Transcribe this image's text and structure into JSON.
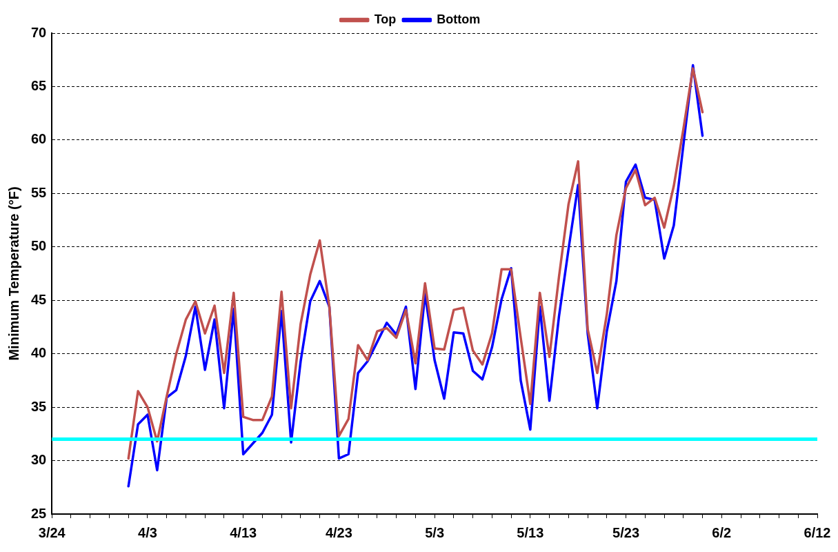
{
  "chart_data": {
    "type": "line",
    "ylabel": "Minimum Temperature (°F)",
    "x": [
      "--04-01",
      "--04-02",
      "--04-03",
      "--04-04",
      "--04-05",
      "--04-06",
      "--04-07",
      "--04-08",
      "--04-09",
      "--04-10",
      "--04-11",
      "--04-12",
      "--04-13",
      "--04-14",
      "--04-15",
      "--04-16",
      "--04-17",
      "--04-18",
      "--04-19",
      "--04-20",
      "--04-21",
      "--04-22",
      "--04-23",
      "--04-24",
      "--04-25",
      "--04-26",
      "--04-27",
      "--04-28",
      "--04-29",
      "--04-30",
      "--05-01",
      "--05-02",
      "--05-03",
      "--05-04",
      "--05-05",
      "--05-06",
      "--05-07",
      "--05-08",
      "--05-09",
      "--05-10",
      "--05-11",
      "--05-12",
      "--05-13",
      "--05-14",
      "--05-15",
      "--05-16",
      "--05-17",
      "--05-18",
      "--05-19",
      "--05-20",
      "--05-21",
      "--05-22",
      "--05-23",
      "--05-24",
      "--05-25",
      "--05-26",
      "--05-27",
      "--05-28",
      "--05-29",
      "--05-30",
      "--05-31"
    ],
    "series": [
      {
        "name": "Bottom",
        "color": "#0000ff",
        "values": [
          27.6,
          33.4,
          34.3,
          29.1,
          35.9,
          36.6,
          39.8,
          44.4,
          38.5,
          43.2,
          34.9,
          44.2,
          30.6,
          31.6,
          32.6,
          34.3,
          44.0,
          31.7,
          39.3,
          44.9,
          46.8,
          44.4,
          30.2,
          30.6,
          38.2,
          39.3,
          41.1,
          42.9,
          41.8,
          44.4,
          36.7,
          45.6,
          39.4,
          35.8,
          42.0,
          41.9,
          38.4,
          37.6,
          40.6,
          45.1,
          48.0,
          37.5,
          32.9,
          44.4,
          35.6,
          43.5,
          49.8,
          55.8,
          41.9,
          34.9,
          42.1,
          46.8,
          56.1,
          57.7,
          54.6,
          54.4,
          48.9,
          52.0,
          59.5,
          67.0,
          60.4
        ]
      },
      {
        "name": "Top",
        "color": "#c0504d",
        "values": [
          30.2,
          36.5,
          35.0,
          31.8,
          36.0,
          40.0,
          43.2,
          44.9,
          41.9,
          44.5,
          38.2,
          45.7,
          34.1,
          33.8,
          33.8,
          36.0,
          45.8,
          34.9,
          42.8,
          47.4,
          50.6,
          44.4,
          32.3,
          33.9,
          40.8,
          39.4,
          42.1,
          42.4,
          41.5,
          44.1,
          39.1,
          46.6,
          40.5,
          40.4,
          44.1,
          44.3,
          40.3,
          39.0,
          41.9,
          47.9,
          47.9,
          41.5,
          35.3,
          45.7,
          39.7,
          47.2,
          54.0,
          58.0,
          42.3,
          38.2,
          43.7,
          51.1,
          55.5,
          57.2,
          53.9,
          54.6,
          51.8,
          55.7,
          61.0,
          66.7,
          62.6
        ]
      }
    ],
    "xlim": [
      "--03-24",
      "--06-12"
    ],
    "xticks": [
      {
        "value": "--03-24",
        "label": "3/24"
      },
      {
        "value": "--03-26",
        "label": null
      },
      {
        "value": "--03-28",
        "label": null
      },
      {
        "value": "--03-30",
        "label": null
      },
      {
        "value": "--04-01",
        "label": null
      },
      {
        "value": "--04-03",
        "label": "4/3"
      },
      {
        "value": "--04-05",
        "label": null
      },
      {
        "value": "--04-07",
        "label": null
      },
      {
        "value": "--04-09",
        "label": null
      },
      {
        "value": "--04-11",
        "label": null
      },
      {
        "value": "--04-13",
        "label": "4/13"
      },
      {
        "value": "--04-15",
        "label": null
      },
      {
        "value": "--04-17",
        "label": null
      },
      {
        "value": "--04-19",
        "label": null
      },
      {
        "value": "--04-21",
        "label": null
      },
      {
        "value": "--04-23",
        "label": "4/23"
      },
      {
        "value": "--04-25",
        "label": null
      },
      {
        "value": "--04-27",
        "label": null
      },
      {
        "value": "--04-29",
        "label": null
      },
      {
        "value": "--05-01",
        "label": null
      },
      {
        "value": "--05-03",
        "label": "5/3"
      },
      {
        "value": "--05-05",
        "label": null
      },
      {
        "value": "--05-07",
        "label": null
      },
      {
        "value": "--05-09",
        "label": null
      },
      {
        "value": "--05-11",
        "label": null
      },
      {
        "value": "--05-13",
        "label": "5/13"
      },
      {
        "value": "--05-15",
        "label": null
      },
      {
        "value": "--05-17",
        "label": null
      },
      {
        "value": "--05-19",
        "label": null
      },
      {
        "value": "--05-21",
        "label": null
      },
      {
        "value": "--05-23",
        "label": "5/23"
      },
      {
        "value": "--05-25",
        "label": null
      },
      {
        "value": "--05-27",
        "label": null
      },
      {
        "value": "--05-29",
        "label": null
      },
      {
        "value": "--05-31",
        "label": null
      },
      {
        "value": "--06-02",
        "label": "6/2"
      },
      {
        "value": "--06-04",
        "label": null
      },
      {
        "value": "--06-06",
        "label": null
      },
      {
        "value": "--06-08",
        "label": null
      },
      {
        "value": "--06-10",
        "label": null
      },
      {
        "value": "--06-12",
        "label": "6/12"
      }
    ],
    "ylim": [
      25,
      70
    ],
    "yticks": [
      25,
      30,
      35,
      40,
      45,
      50,
      55,
      60,
      65,
      70
    ],
    "ref_lines": [
      {
        "axis": "y",
        "value": 32,
        "color": "#00ffff"
      }
    ],
    "grid": "y",
    "legend": "top",
    "line_style": "solid",
    "marker": "none"
  }
}
